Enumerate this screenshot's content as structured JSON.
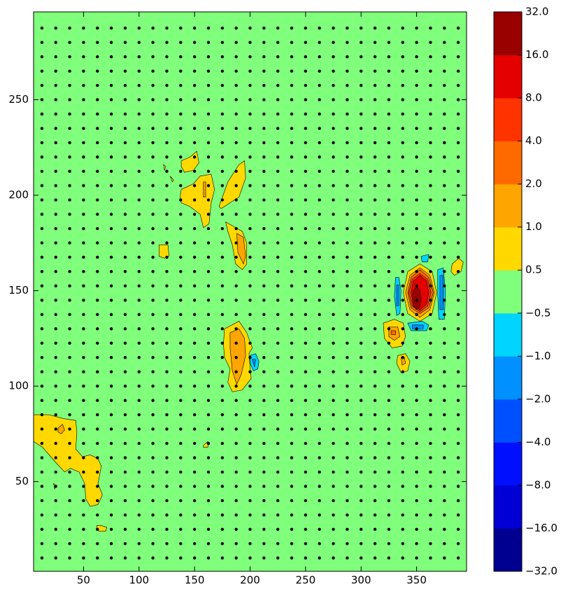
{
  "chart_data": {
    "type": "contourf",
    "xlim": [
      5,
      395
    ],
    "ylim": [
      3,
      296
    ],
    "xticks": [
      50,
      100,
      150,
      200,
      250,
      300,
      350
    ],
    "yticks": [
      50,
      100,
      150,
      200,
      250
    ],
    "levels": [
      {
        "value": -32,
        "label": "−32.0"
      },
      {
        "value": -16,
        "label": "−16.0"
      },
      {
        "value": -8,
        "label": "−8.0"
      },
      {
        "value": -4,
        "label": "−4.0"
      },
      {
        "value": -2,
        "label": "−2.0"
      },
      {
        "value": -1,
        "label": "−1.0"
      },
      {
        "value": -0.5,
        "label": "−0.5"
      },
      {
        "value": 0.5,
        "label": "0.5"
      },
      {
        "value": 1,
        "label": "1.0"
      },
      {
        "value": 2,
        "label": "2.0"
      },
      {
        "value": 4,
        "label": "4.0"
      },
      {
        "value": 8,
        "label": "8.0"
      },
      {
        "value": 16,
        "label": "16.0"
      },
      {
        "value": 32,
        "label": "32.0"
      }
    ],
    "colors": [
      "#000090",
      "#0000d5",
      "#0010ff",
      "#0050ff",
      "#0090ff",
      "#00d4ff",
      "#80ff7c",
      "#ffd800",
      "#ffa500",
      "#ff6a00",
      "#ff3300",
      "#e50000",
      "#990000"
    ],
    "background_level": -0.5,
    "contours": [
      {
        "level": 0.5,
        "x": [
          5,
          19,
          32,
          43,
          44,
          43,
          49,
          56,
          63,
          66,
          63,
          67,
          63,
          56,
          52,
          51,
          46,
          38,
          33,
          25,
          13,
          5
        ],
        "y": [
          85,
          85,
          83,
          82,
          76,
          67,
          63,
          64,
          62,
          58,
          49,
          43,
          38,
          37,
          41,
          49,
          55,
          57,
          55,
          60,
          68,
          71
        ]
      },
      {
        "level": 1,
        "x": [
          27,
          31,
          33,
          30,
          27
        ],
        "y": [
          78,
          80,
          77,
          75,
          76
        ]
      },
      {
        "level": 0.5,
        "x": [
          62,
          66,
          71,
          70,
          64,
          62
        ],
        "y": [
          27,
          27,
          26,
          24,
          24,
          25
        ]
      },
      {
        "level": 0.5,
        "x": [
          23,
          25,
          24
        ],
        "y": [
          49,
          48,
          46
        ]
      },
      {
        "level": 0.5,
        "x": [
          158,
          162,
          162,
          158
        ],
        "y": [
          69,
          71,
          68,
          68
        ]
      },
      {
        "level": 0.5,
        "x": [
          138,
          146,
          152,
          154,
          149,
          141,
          138
        ],
        "y": [
          218,
          220,
          223,
          217,
          213,
          212,
          215
        ]
      },
      {
        "level": 0.5,
        "x": [
          122,
          124,
          123
        ],
        "y": [
          216,
          215,
          213
        ]
      },
      {
        "level": 0.5,
        "x": [
          128,
          131,
          130
        ],
        "y": [
          210,
          208,
          207
        ]
      },
      {
        "level": 0.5,
        "x": [
          138,
          149,
          155,
          165,
          168,
          165,
          163,
          158,
          155,
          146,
          138,
          137
        ],
        "y": [
          203,
          206,
          210,
          211,
          203,
          196,
          185,
          183,
          190,
          194,
          196,
          199
        ]
      },
      {
        "level": 1,
        "x": [
          158,
          160,
          160,
          158
        ],
        "y": [
          207,
          207,
          199,
          199
        ]
      },
      {
        "level": 0.5,
        "x": [
          172,
          180,
          190,
          195,
          196,
          190,
          182,
          174
        ],
        "y": [
          194,
          207,
          216,
          218,
          209,
          199,
          196,
          193
        ]
      },
      {
        "level": 0.5,
        "x": [
          178,
          187,
          193,
          197,
          197,
          193,
          187,
          184,
          180
        ],
        "y": [
          186,
          183,
          181,
          175,
          164,
          161,
          164,
          174,
          181
        ]
      },
      {
        "level": 1,
        "x": [
          188,
          194,
          196,
          194,
          189
        ],
        "y": [
          180,
          178,
          168,
          164,
          170
        ]
      },
      {
        "level": 0.5,
        "x": [
          118,
          126,
          127,
          123,
          118
        ],
        "y": [
          174,
          174,
          168,
          167,
          168
        ]
      },
      {
        "level": 0.5,
        "x": [
          177,
          190,
          197,
          202,
          199,
          201,
          193,
          184,
          180,
          182,
          177,
          176
        ],
        "y": [
          130,
          134,
          128,
          120,
          117,
          104,
          98,
          97,
          102,
          109,
          115,
          122
        ]
      },
      {
        "level": 1,
        "x": [
          182,
          190,
          195,
          196,
          192,
          188,
          184,
          182
        ],
        "y": [
          128,
          130,
          125,
          116,
          106,
          101,
          108,
          120
        ]
      },
      {
        "level": -1,
        "x": [
          200,
          205,
          208,
          207,
          203,
          200
        ],
        "y": [
          116,
          117,
          113,
          109,
          108,
          112
        ]
      },
      {
        "level": -2,
        "x": [
          202,
          205,
          204
        ],
        "y": [
          114,
          114,
          110
        ]
      },
      {
        "level": 0.5,
        "x": [
          368,
          364,
          353,
          342,
          338,
          342,
          353,
          364
        ],
        "y": [
          149,
          160,
          164,
          160,
          149,
          138,
          134,
          138
        ]
      },
      {
        "level": 1,
        "x": [
          366,
          362,
          353,
          344,
          340,
          344,
          353,
          362
        ],
        "y": [
          149,
          158,
          162,
          158,
          149,
          140,
          136,
          140
        ]
      },
      {
        "level": 2,
        "x": [
          365,
          361,
          353,
          345,
          342,
          345,
          353,
          361
        ],
        "y": [
          149,
          157,
          161,
          157,
          149,
          141,
          138,
          141
        ]
      },
      {
        "level": 4,
        "x": [
          363,
          360,
          353,
          346,
          343,
          346,
          353,
          360
        ],
        "y": [
          149,
          156,
          159,
          156,
          149,
          142,
          139,
          142
        ]
      },
      {
        "level": 8,
        "x": [
          361,
          359,
          353,
          347,
          345,
          347,
          353,
          359
        ],
        "y": [
          149,
          155,
          158,
          155,
          149,
          143,
          140,
          143
        ]
      },
      {
        "level": 16,
        "x": [
          354,
          353,
          350,
          347,
          346,
          347,
          350,
          353
        ],
        "y": [
          146,
          150,
          152,
          150,
          146,
          142,
          140,
          142
        ]
      },
      {
        "level": -1,
        "x": [
          331,
          334,
          336,
          335,
          332,
          330
        ],
        "y": [
          157,
          157,
          150,
          138,
          137,
          147
        ]
      },
      {
        "level": -2,
        "x": [
          332,
          334,
          334,
          332
        ],
        "y": [
          153,
          153,
          142,
          142
        ]
      },
      {
        "level": -1,
        "x": [
          369,
          374,
          376,
          375,
          370,
          369
        ],
        "y": [
          161,
          162,
          150,
          135,
          135,
          148
        ]
      },
      {
        "level": -2,
        "x": [
          371,
          374,
          374,
          371
        ],
        "y": [
          158,
          158,
          140,
          140
        ]
      },
      {
        "level": -1,
        "x": [
          342,
          355,
          361,
          359,
          345
        ],
        "y": [
          133,
          134,
          132,
          129,
          129
        ]
      },
      {
        "level": -2,
        "x": [
          346,
          356,
          356,
          346
        ],
        "y": [
          132,
          132,
          130,
          130
        ]
      },
      {
        "level": -1,
        "x": [
          354,
          361,
          360,
          355
        ],
        "y": [
          168,
          169,
          165,
          165
        ]
      },
      {
        "level": 0.5,
        "x": [
          320,
          330,
          338,
          340,
          337,
          328,
          321
        ],
        "y": [
          133,
          135,
          133,
          126,
          121,
          120,
          125
        ]
      },
      {
        "level": 1,
        "x": [
          325,
          333,
          335,
          330,
          325
        ],
        "y": [
          131,
          131,
          126,
          124,
          126
        ]
      },
      {
        "level": 2,
        "x": [
          327,
          331,
          331,
          327
        ],
        "y": [
          129,
          129,
          127,
          127
        ]
      },
      {
        "level": 0.5,
        "x": [
          333,
          340,
          344,
          342,
          336,
          332
        ],
        "y": [
          116,
          117,
          113,
          108,
          107,
          112
        ]
      },
      {
        "level": 1,
        "x": [
          336,
          339,
          340,
          337
        ],
        "y": [
          115,
          115,
          112,
          111
        ]
      },
      {
        "level": 0.5,
        "x": [
          382,
          388,
          392,
          390,
          384,
          381
        ],
        "y": [
          164,
          167,
          165,
          160,
          158,
          160
        ]
      }
    ],
    "markers": {
      "color": "#000000",
      "x": [
        12.5,
        25,
        37.5,
        50,
        62.5,
        75,
        87.5,
        100,
        112.5,
        125,
        137.5,
        150,
        162.5,
        175,
        187.5,
        200,
        212.5,
        225,
        237.5,
        250,
        262.5,
        275,
        287.5,
        300,
        312.5,
        325,
        337.5,
        350,
        362.5,
        375,
        387.5
      ],
      "y": [
        10,
        17.5,
        25,
        32.5,
        40,
        47.5,
        55,
        62.5,
        70,
        77.5,
        85,
        92.5,
        100,
        107.5,
        115,
        122.5,
        130,
        137.5,
        145,
        152.5,
        160,
        167.5,
        175,
        182.5,
        190,
        197.5,
        205,
        212.5,
        220,
        227.5,
        235,
        242.5,
        250,
        257.5,
        265,
        272.5,
        280,
        287.5
      ]
    }
  }
}
